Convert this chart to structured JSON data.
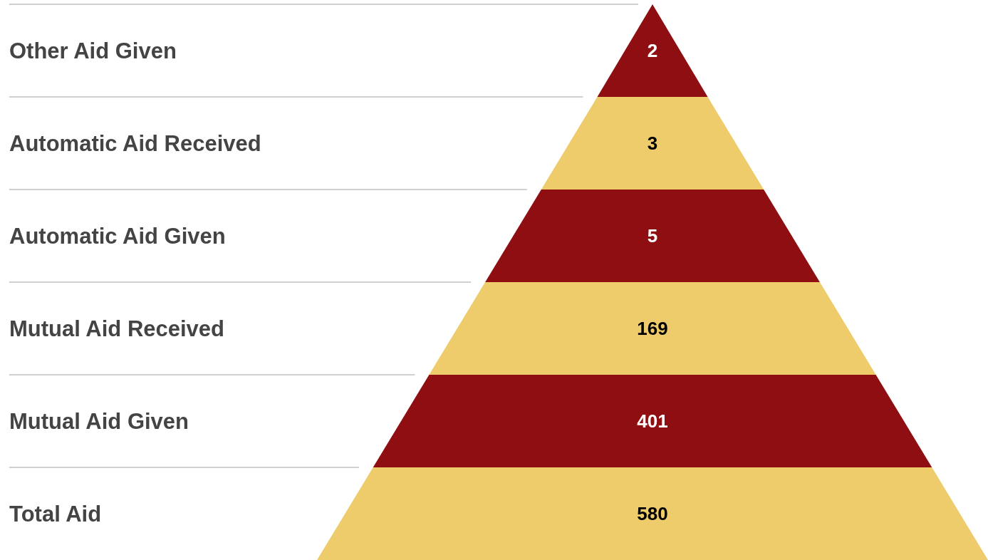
{
  "chart_data": {
    "type": "other",
    "categories": [
      "Other Aid Given",
      "Automatic Aid Received",
      "Automatic Aid Given",
      "Mutual Aid Received",
      "Mutual Aid Given",
      "Total Aid"
    ],
    "values": [
      2,
      3,
      5,
      169,
      401,
      580
    ],
    "colors": [
      "#8f0e11",
      "#eecb6b",
      "#8f0e11",
      "#eecb6b",
      "#8f0e11",
      "#eecb6b"
    ],
    "data_labels": true
  }
}
